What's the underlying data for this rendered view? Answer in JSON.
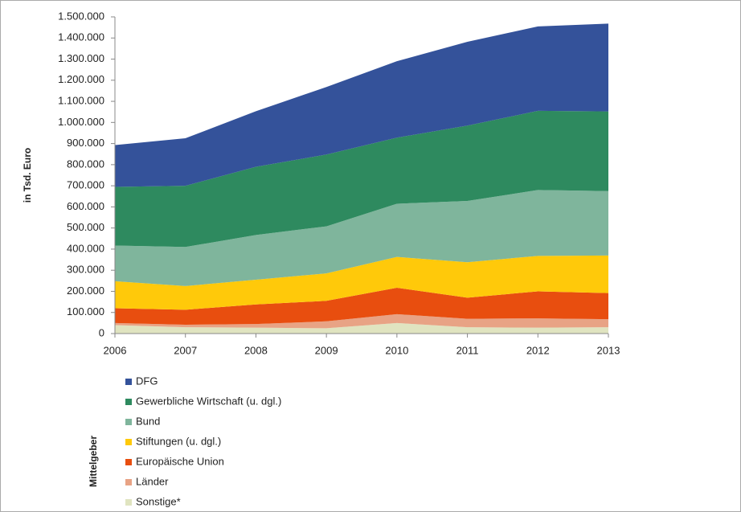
{
  "chart_data": {
    "type": "stacked_area",
    "y_label": "in Tsd. Euro",
    "legend_title": "Mittelgeber",
    "x": [
      2006,
      2007,
      2008,
      2009,
      2010,
      2011,
      2012,
      2013
    ],
    "xlim": [
      2006,
      2013
    ],
    "xticks": [
      2006,
      2007,
      2008,
      2009,
      2010,
      2011,
      2012,
      2013
    ],
    "ylim": [
      0,
      1500000
    ],
    "yticks": [
      0,
      {
        "value": 100000,
        "label": "100.000"
      },
      {
        "value": 200000,
        "label": "200.000"
      },
      {
        "value": 300000,
        "label": "300.000"
      },
      {
        "value": 400000,
        "label": "400.000"
      },
      {
        "value": 500000,
        "label": "500.000"
      },
      {
        "value": 600000,
        "label": "600.000"
      },
      {
        "value": 700000,
        "label": "700.000"
      },
      {
        "value": 800000,
        "label": "800.000"
      },
      {
        "value": 900000,
        "label": "900.000"
      },
      {
        "value": 1000000,
        "label": "1.000.000"
      },
      {
        "value": 1100000,
        "label": "1.100.000"
      },
      {
        "value": 1200000,
        "label": "1.200.000"
      },
      {
        "value": 1300000,
        "label": "1.300.000"
      },
      {
        "value": 1400000,
        "label": "1.400.000"
      },
      {
        "value": 1500000,
        "label": "1.500.000"
      }
    ],
    "series": [
      {
        "name": "DFG",
        "color": "#34529a",
        "values": [
          198000,
          225000,
          263000,
          320000,
          362000,
          397000,
          400000,
          416000
        ]
      },
      {
        "name": "Gewerbliche Wirtschaft (u. dgl.)",
        "color": "#2e8a5f",
        "values": [
          278000,
          290000,
          323000,
          340000,
          313000,
          357000,
          375000,
          377000
        ]
      },
      {
        "name": "Bund",
        "color": "#7fb59c",
        "values": [
          169000,
          185000,
          212000,
          223000,
          252000,
          290000,
          312000,
          305000
        ]
      },
      {
        "name": "Stiftungen (u. dgl.)",
        "color": "#ffc90a",
        "values": [
          128000,
          112000,
          117000,
          130000,
          146000,
          168000,
          168000,
          178000
        ]
      },
      {
        "name": "Europäische Union",
        "color": "#e84e0f",
        "values": [
          70000,
          71000,
          93000,
          97000,
          125000,
          100000,
          128000,
          124000
        ]
      },
      {
        "name": "Länder",
        "color": "#e8a385",
        "values": [
          10000,
          12000,
          17000,
          33000,
          42000,
          40000,
          44000,
          38000
        ]
      },
      {
        "name": "Sonstige*",
        "color": "#e0e4c0",
        "values": [
          40000,
          30000,
          28000,
          25000,
          50000,
          30000,
          28000,
          30000
        ]
      }
    ]
  }
}
